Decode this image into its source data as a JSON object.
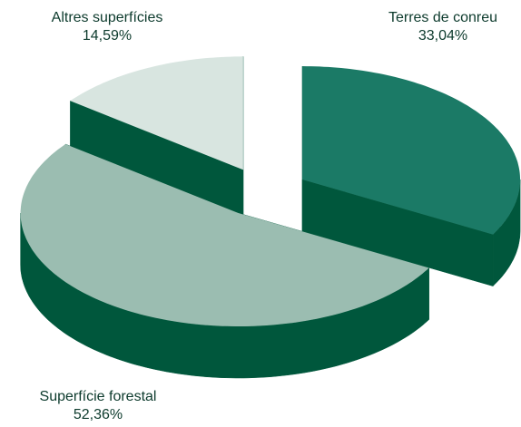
{
  "chart_data": {
    "type": "pie3d",
    "categories": [
      "Terres de conreu",
      "Superfície forestal",
      "Altres superfícies"
    ],
    "values": [
      33.04,
      52.36,
      14.59
    ],
    "value_labels": [
      "33,04%",
      "52,36%",
      "14,59%"
    ],
    "colors": [
      "#1b7a66",
      "#9bbdb1",
      "#d8e5e0"
    ]
  }
}
